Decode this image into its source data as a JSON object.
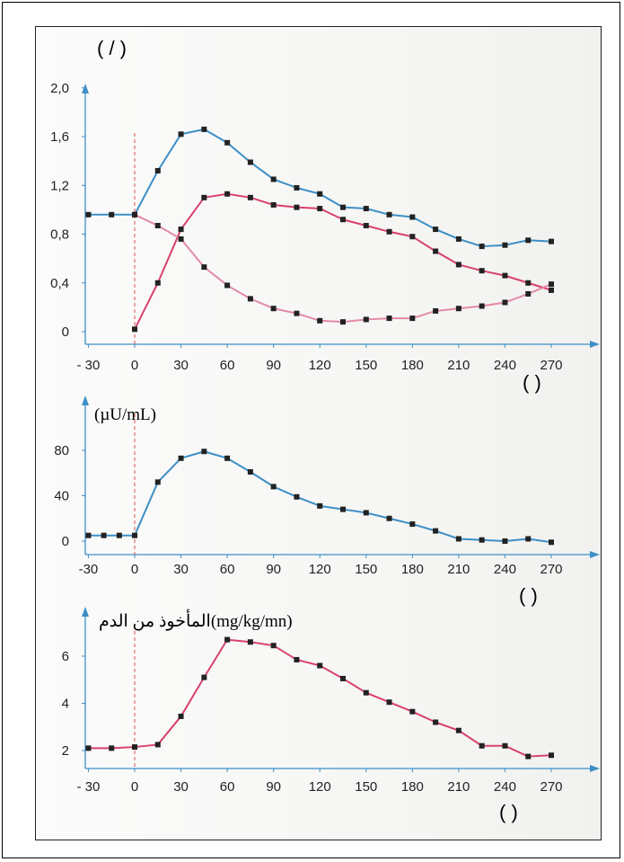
{
  "colors": {
    "blue": "#3d8fc6",
    "red": "#d8416e",
    "pink": "#e28aa6",
    "axis": "#3d8fc6",
    "marker": "#222222",
    "dash": "#d9534f"
  },
  "chart_data": [
    {
      "type": "line",
      "title": "",
      "ylabel": "( / )",
      "xlabel": "( )",
      "x": [
        -30,
        -15,
        0,
        15,
        30,
        45,
        60,
        75,
        90,
        105,
        120,
        135,
        150,
        165,
        180,
        195,
        210,
        225,
        240,
        255,
        270
      ],
      "xticks": [
        "- 30",
        "0",
        "30",
        "60",
        "90",
        "120",
        "150",
        "180",
        "210",
        "240",
        "270"
      ],
      "xtick_values": [
        -30,
        0,
        30,
        60,
        90,
        120,
        150,
        180,
        210,
        240,
        270
      ],
      "yticks": [
        "0",
        "0,4",
        "0,8",
        "1,2",
        "1,6",
        "2,0"
      ],
      "ytick_values": [
        0,
        0.4,
        0.8,
        1.2,
        1.6,
        2.0
      ],
      "ylim": [
        0,
        2.1
      ],
      "xlim": [
        -30,
        280
      ],
      "series": [
        {
          "color": "blue",
          "values": [
            0.96,
            0.96,
            0.96,
            1.32,
            1.62,
            1.66,
            1.55,
            1.39,
            1.25,
            1.18,
            1.13,
            1.02,
            1.01,
            0.96,
            0.94,
            0.84,
            0.76,
            0.7,
            0.71,
            0.75,
            0.74
          ]
        },
        {
          "color": "red",
          "values": [
            null,
            null,
            0.02,
            0.4,
            0.84,
            1.1,
            1.13,
            1.1,
            1.04,
            1.02,
            1.01,
            0.92,
            0.87,
            0.82,
            0.78,
            0.66,
            0.55,
            0.5,
            0.46,
            0.4,
            0.34
          ]
        },
        {
          "color": "pink",
          "values": [
            null,
            null,
            0.96,
            0.87,
            0.76,
            0.53,
            0.38,
            0.27,
            0.19,
            0.15,
            0.09,
            0.08,
            0.1,
            0.11,
            0.11,
            0.17,
            0.19,
            0.21,
            0.24,
            0.31,
            0.39
          ]
        }
      ]
    },
    {
      "type": "line",
      "title": "",
      "ylabel": "(µU/mL)",
      "xlabel": "( )",
      "x": [
        -30,
        -20,
        -10,
        0,
        15,
        30,
        45,
        60,
        75,
        90,
        105,
        120,
        135,
        150,
        165,
        180,
        195,
        210,
        225,
        240,
        255,
        270
      ],
      "xticks": [
        "-30",
        "0",
        "30",
        "60",
        "90",
        "120",
        "150",
        "180",
        "210",
        "240",
        "270"
      ],
      "xtick_values": [
        -30,
        0,
        30,
        60,
        90,
        120,
        150,
        180,
        210,
        240,
        270
      ],
      "yticks": [
        "0",
        "40",
        "80"
      ],
      "ytick_values": [
        0,
        40,
        80
      ],
      "ylim": [
        0,
        100
      ],
      "xlim": [
        -30,
        280
      ],
      "series": [
        {
          "color": "blue",
          "values": [
            5,
            5,
            5,
            5,
            52,
            73,
            79,
            73,
            61,
            48,
            39,
            31,
            28,
            25,
            20,
            15,
            9,
            2,
            1,
            0,
            2,
            -1
          ]
        }
      ]
    },
    {
      "type": "line",
      "title": "",
      "ylabel": "المأخوذ من الدم(mg/kg/mn)",
      "xlabel": "( )",
      "x": [
        -30,
        -15,
        0,
        15,
        30,
        45,
        60,
        75,
        90,
        105,
        120,
        135,
        150,
        165,
        180,
        195,
        210,
        225,
        240,
        255,
        270
      ],
      "xticks": [
        "- 30",
        "0",
        "30",
        "60",
        "90",
        "120",
        "150",
        "180",
        "210",
        "240",
        "270"
      ],
      "xtick_values": [
        -30,
        0,
        30,
        60,
        90,
        120,
        150,
        180,
        210,
        240,
        270
      ],
      "yticks": [
        "2",
        "4",
        "6"
      ],
      "ytick_values": [
        2,
        4,
        6
      ],
      "ylim": [
        1.4,
        7.2
      ],
      "xlim": [
        -30,
        280
      ],
      "series": [
        {
          "color": "red",
          "values": [
            2.1,
            2.1,
            2.15,
            2.25,
            3.45,
            5.1,
            6.7,
            6.6,
            6.45,
            5.85,
            5.6,
            5.05,
            4.45,
            4.05,
            3.65,
            3.2,
            2.85,
            2.2,
            2.2,
            1.75,
            1.8
          ]
        }
      ]
    }
  ]
}
